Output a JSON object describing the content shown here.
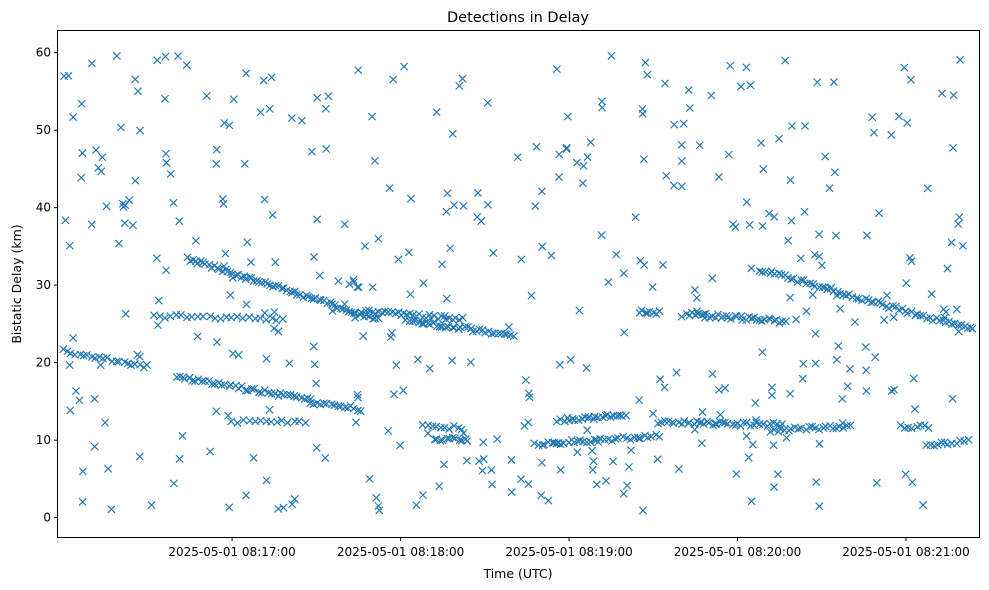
{
  "chart_data": {
    "type": "scatter",
    "title": "Detections in Delay",
    "xlabel": "Time (UTC)",
    "ylabel": "Bistatic Delay (km)",
    "marker": "x",
    "color": "#1f77b4",
    "xlim": [
      -32,
      296
    ],
    "ylim": [
      -2.5,
      62.8
    ],
    "x_unit": "seconds after 2025-05-01 08:16:30 UTC",
    "xticks": [
      {
        "value": 30,
        "label": "2025-05-01 08:17:00"
      },
      {
        "value": 90,
        "label": "2025-05-01 08:18:00"
      },
      {
        "value": 150,
        "label": "2025-05-01 08:19:00"
      },
      {
        "value": 210,
        "label": "2025-05-01 08:20:00"
      },
      {
        "value": 270,
        "label": "2025-05-01 08:21:00"
      }
    ],
    "yticks": [
      0,
      10,
      20,
      30,
      40,
      50,
      60
    ],
    "tracks": [
      {
        "x0": -30,
        "y0": 21.5,
        "x1": 0,
        "y1": 19.5,
        "n": 22
      },
      {
        "x0": 2,
        "y0": 26.0,
        "x1": 48,
        "y1": 25.6,
        "n": 24
      },
      {
        "x0": 14,
        "y0": 33.4,
        "x1": 82,
        "y1": 25.6,
        "n": 72
      },
      {
        "x0": 10,
        "y0": 18.2,
        "x1": 58,
        "y1": 15.2,
        "n": 42
      },
      {
        "x0": 30,
        "y0": 12.4,
        "x1": 56,
        "y1": 12.3,
        "n": 14
      },
      {
        "x0": 58,
        "y0": 14.9,
        "x1": 76,
        "y1": 14.0,
        "n": 16
      },
      {
        "x0": 78,
        "y0": 26.6,
        "x1": 112,
        "y1": 25.6,
        "n": 32
      },
      {
        "x0": 92,
        "y0": 25.5,
        "x1": 130,
        "y1": 23.5,
        "n": 36
      },
      {
        "x0": 98,
        "y0": 11.8,
        "x1": 112,
        "y1": 11.6,
        "n": 10
      },
      {
        "x0": 102,
        "y0": 10.2,
        "x1": 114,
        "y1": 10.0,
        "n": 12
      },
      {
        "x0": 138,
        "y0": 9.5,
        "x1": 160,
        "y1": 10.0,
        "n": 20
      },
      {
        "x0": 146,
        "y0": 12.6,
        "x1": 170,
        "y1": 13.2,
        "n": 24
      },
      {
        "x0": 160,
        "y0": 10.0,
        "x1": 182,
        "y1": 10.6,
        "n": 18
      },
      {
        "x0": 175,
        "y0": 26.6,
        "x1": 182,
        "y1": 26.4,
        "n": 8
      },
      {
        "x0": 182,
        "y0": 12.3,
        "x1": 226,
        "y1": 12.0,
        "n": 40
      },
      {
        "x0": 192,
        "y0": 26.3,
        "x1": 227,
        "y1": 25.3,
        "n": 36
      },
      {
        "x0": 222,
        "y0": 11.2,
        "x1": 250,
        "y1": 11.9,
        "n": 24
      },
      {
        "x0": 218,
        "y0": 32.0,
        "x1": 294,
        "y1": 24.2,
        "n": 70
      },
      {
        "x0": 268,
        "y0": 11.8,
        "x1": 278,
        "y1": 11.7,
        "n": 8
      },
      {
        "x0": 277,
        "y0": 9.4,
        "x1": 292,
        "y1": 9.8,
        "n": 12
      }
    ],
    "random_clutter": {
      "count": 420,
      "x_range": [
        -30,
        294
      ],
      "y_range": [
        0.6,
        59.8
      ],
      "seed": 20250501
    }
  }
}
